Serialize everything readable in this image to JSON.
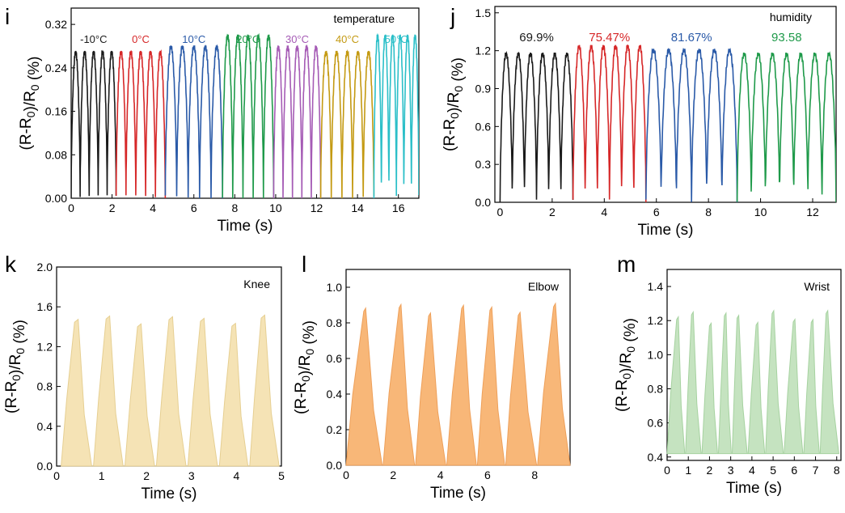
{
  "chart_data": [
    {
      "panel": "i",
      "type": "line",
      "legend": "temperature",
      "xlabel": "Time (s)",
      "ylabel": "(R-R0)/R0 (%)",
      "xlim": [
        0,
        17
      ],
      "ylim": [
        0,
        0.35
      ],
      "xticks": [
        0,
        2,
        4,
        6,
        8,
        10,
        12,
        14,
        16
      ],
      "yticks": [
        0.0,
        0.08,
        0.16,
        0.24,
        0.32
      ],
      "ytick_labels": [
        "0.00",
        "0.08",
        "0.16",
        "0.24",
        "0.32"
      ],
      "series": [
        {
          "name": "-10°C",
          "color": "#1a1a1a",
          "x_start": 0.0,
          "x_end": 2.2,
          "cycles": 5,
          "peak": 0.27,
          "min": 0.0
        },
        {
          "name": "0°C",
          "color": "#d62728",
          "x_start": 2.2,
          "x_end": 4.6,
          "cycles": 5,
          "peak": 0.27,
          "min": 0.0
        },
        {
          "name": "10°C",
          "color": "#2a5aa8",
          "x_start": 4.6,
          "x_end": 7.4,
          "cycles": 5,
          "peak": 0.28,
          "min": 0.0
        },
        {
          "name": "20°C",
          "color": "#1f9a4a",
          "x_start": 7.4,
          "x_end": 9.9,
          "cycles": 5,
          "peak": 0.3,
          "min": 0.0
        },
        {
          "name": "30°C",
          "color": "#a55bb5",
          "x_start": 9.9,
          "x_end": 12.2,
          "cycles": 5,
          "peak": 0.28,
          "min": 0.0
        },
        {
          "name": "40°C",
          "color": "#c49a12",
          "x_start": 12.2,
          "x_end": 14.8,
          "cycles": 5,
          "peak": 0.27,
          "min": 0.0
        },
        {
          "name": "50°C",
          "color": "#2bbfc8",
          "x_start": 14.8,
          "x_end": 17.0,
          "cycles": 6,
          "peak": 0.3,
          "min": 0.0
        }
      ]
    },
    {
      "panel": "j",
      "type": "line",
      "legend": "humidity",
      "xlabel": "Time (s)",
      "ylabel": "(R-R0)/R0 (%)",
      "xlim": [
        -0.2,
        12.9
      ],
      "ylim": [
        0,
        1.55
      ],
      "xticks": [
        0,
        2,
        4,
        6,
        8,
        10,
        12
      ],
      "yticks": [
        0.0,
        0.3,
        0.6,
        0.9,
        1.2,
        1.5
      ],
      "ytick_labels": [
        "0.0",
        "0.3",
        "0.6",
        "0.9",
        "1.2",
        "1.5"
      ],
      "series": [
        {
          "name": "69.9%",
          "color": "#1a1a1a",
          "x_start": 0.0,
          "x_end": 2.8,
          "cycles": 6,
          "peak": 1.18,
          "min": 0.0
        },
        {
          "name": "75.47%",
          "color": "#d62728",
          "x_start": 2.8,
          "x_end": 5.6,
          "cycles": 6,
          "peak": 1.24,
          "min": 0.0
        },
        {
          "name": "81.67%",
          "color": "#2a5aa8",
          "x_start": 5.6,
          "x_end": 9.1,
          "cycles": 6,
          "peak": 1.21,
          "min": 0.0
        },
        {
          "name": "93.58",
          "color": "#1f9a4a",
          "x_start": 9.1,
          "x_end": 12.9,
          "cycles": 7,
          "peak": 1.18,
          "min": 0.0
        }
      ]
    },
    {
      "panel": "k",
      "type": "area",
      "legend": "Knee",
      "color": "#f5e3b5",
      "stroke": "#e6cf92",
      "xlabel": "Time (s)",
      "ylabel": "(R-R0)/R0 (%)",
      "xlim": [
        0,
        5
      ],
      "ylim": [
        0,
        2.0
      ],
      "xticks": [
        0,
        1,
        2,
        3,
        4,
        5
      ],
      "yticks": [
        0.0,
        0.4,
        0.8,
        1.2,
        1.6,
        2.0
      ],
      "ytick_labels": [
        "0.0",
        "0.4",
        "0.8",
        "1.2",
        "1.6",
        "2.0"
      ],
      "peaks_x": [
        0.45,
        1.15,
        1.85,
        2.55,
        3.25,
        3.95,
        4.6
      ],
      "peak_value": 1.52,
      "start_x": 0.1,
      "end_x": 4.95
    },
    {
      "panel": "l",
      "type": "area",
      "legend": "Elbow",
      "color": "#f8b778",
      "stroke": "#eea05a",
      "xlabel": "Time (s)",
      "ylabel": "(R-R0)/R0 (%)",
      "xlim": [
        0,
        9.5
      ],
      "ylim": [
        0,
        1.1
      ],
      "xticks": [
        0,
        2,
        4,
        6,
        8
      ],
      "yticks": [
        0.0,
        0.2,
        0.4,
        0.6,
        0.8,
        1.0
      ],
      "ytick_labels": [
        "0.0",
        "0.2",
        "0.4",
        "0.6",
        "0.8",
        "1.0"
      ],
      "peaks_x": [
        0.8,
        2.3,
        3.55,
        4.95,
        6.15,
        7.35,
        8.85
      ],
      "peak_value": 0.91,
      "start_x": 0.0,
      "end_x": 9.5
    },
    {
      "panel": "m",
      "type": "area",
      "legend": "Wrist",
      "color": "#c5e3c0",
      "stroke": "#a6d2a0",
      "xlabel": "Time (s)",
      "ylabel": "(R-R0)/R0 (%)",
      "xlim": [
        0,
        8.2
      ],
      "ylim": [
        0.38,
        1.5
      ],
      "xticks": [
        0,
        1,
        2,
        3,
        4,
        5,
        6,
        7,
        8
      ],
      "yticks": [
        0.4,
        0.6,
        0.8,
        1.0,
        1.2,
        1.4
      ],
      "ytick_labels": [
        "0.4",
        "0.6",
        "0.8",
        "1.0",
        "1.2",
        "1.4"
      ],
      "peaks_x": [
        0.5,
        1.2,
        2.05,
        2.75,
        3.35,
        4.25,
        5.0,
        6.0,
        6.85,
        7.55
      ],
      "peak_value": 1.26,
      "base_value": 0.42,
      "start_x": 0.0,
      "end_x": 8.1
    }
  ]
}
